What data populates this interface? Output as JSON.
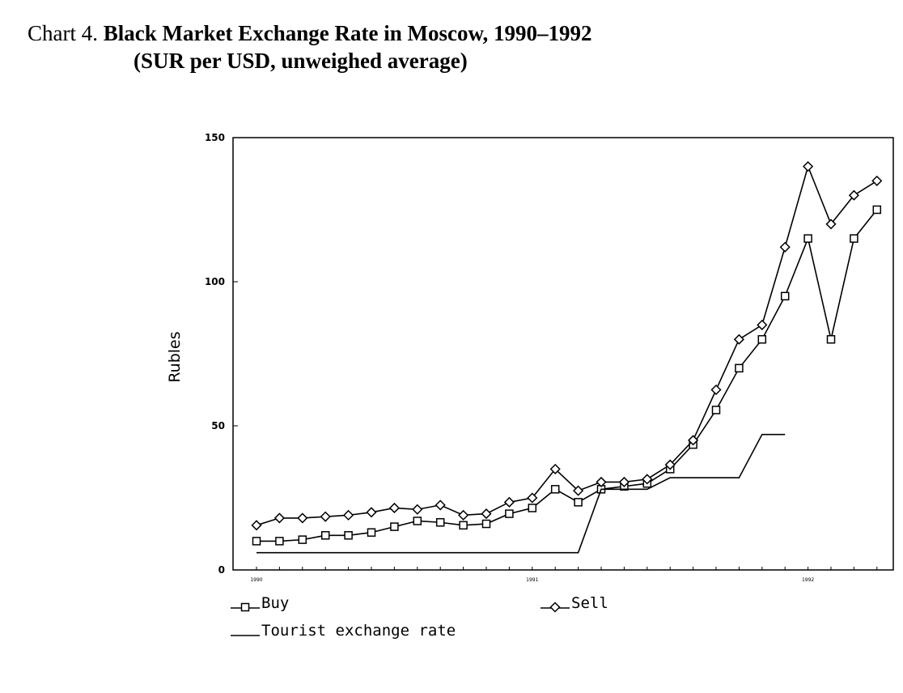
{
  "header": {
    "prefix": "Chart 4.",
    "title": "Black Market Exchange Rate in Moscow, 1990–1992",
    "subtitle": "(SUR per USD, unweighed average)"
  },
  "chart_data": {
    "type": "line",
    "title": "Black Market Exchange Rate in Moscow, 1990–1992",
    "subtitle": "(SUR per USD, unweighed average)",
    "xlabel": "",
    "ylabel": "Rubles",
    "ylim": [
      0,
      150
    ],
    "yticks": [
      0,
      50,
      100,
      150
    ],
    "x_period": "month",
    "x_start": "1990-01",
    "x_tick_labels": [
      {
        "label": "1990",
        "date": "1990-01"
      },
      {
        "label": "1991",
        "date": "1991-01"
      },
      {
        "label": "1992",
        "date": "1992-01"
      }
    ],
    "grid": false,
    "legend_position": "bottom",
    "series": [
      {
        "name": "Buy",
        "marker": "square",
        "x": [
          "1990-01",
          "1990-02",
          "1990-03",
          "1990-04",
          "1990-05",
          "1990-06",
          "1990-07",
          "1990-08",
          "1990-09",
          "1990-10",
          "1990-11",
          "1990-12",
          "1991-01",
          "1991-02",
          "1991-03",
          "1991-04",
          "1991-05",
          "1991-06",
          "1991-07",
          "1991-08",
          "1991-09",
          "1991-10",
          "1991-11",
          "1991-12",
          "1992-01",
          "1992-02",
          "1992-03",
          "1992-04"
        ],
        "values": [
          10,
          10,
          10.5,
          12,
          12,
          13,
          15,
          17,
          16.5,
          15.5,
          16,
          19.5,
          21.5,
          28,
          23.5,
          28,
          29,
          30,
          35,
          43.5,
          55.5,
          70,
          80,
          95,
          115,
          80,
          115,
          125
        ]
      },
      {
        "name": "Sell",
        "marker": "diamond",
        "x": [
          "1990-01",
          "1990-02",
          "1990-03",
          "1990-04",
          "1990-05",
          "1990-06",
          "1990-07",
          "1990-08",
          "1990-09",
          "1990-10",
          "1990-11",
          "1990-12",
          "1991-01",
          "1991-02",
          "1991-03",
          "1991-04",
          "1991-05",
          "1991-06",
          "1991-07",
          "1991-08",
          "1991-09",
          "1991-10",
          "1991-11",
          "1991-12",
          "1992-01",
          "1992-02",
          "1992-03",
          "1992-04"
        ],
        "values": [
          15.5,
          18,
          18,
          18.5,
          19,
          20,
          21.5,
          21,
          22.5,
          19,
          19.5,
          23.5,
          25,
          35,
          27.5,
          30.5,
          30.5,
          31.5,
          36.5,
          45,
          62.5,
          80,
          85,
          112,
          140,
          120,
          130,
          135
        ]
      },
      {
        "name": "Tourist exchange rate",
        "marker": "none",
        "step": true,
        "x": [
          "1990-01",
          "1990-06",
          "1991-03",
          "1991-04",
          "1991-06",
          "1991-07",
          "1991-10",
          "1991-11",
          "1991-12"
        ],
        "values": [
          6,
          6,
          6,
          28,
          28,
          32,
          32,
          47,
          47
        ]
      }
    ]
  }
}
